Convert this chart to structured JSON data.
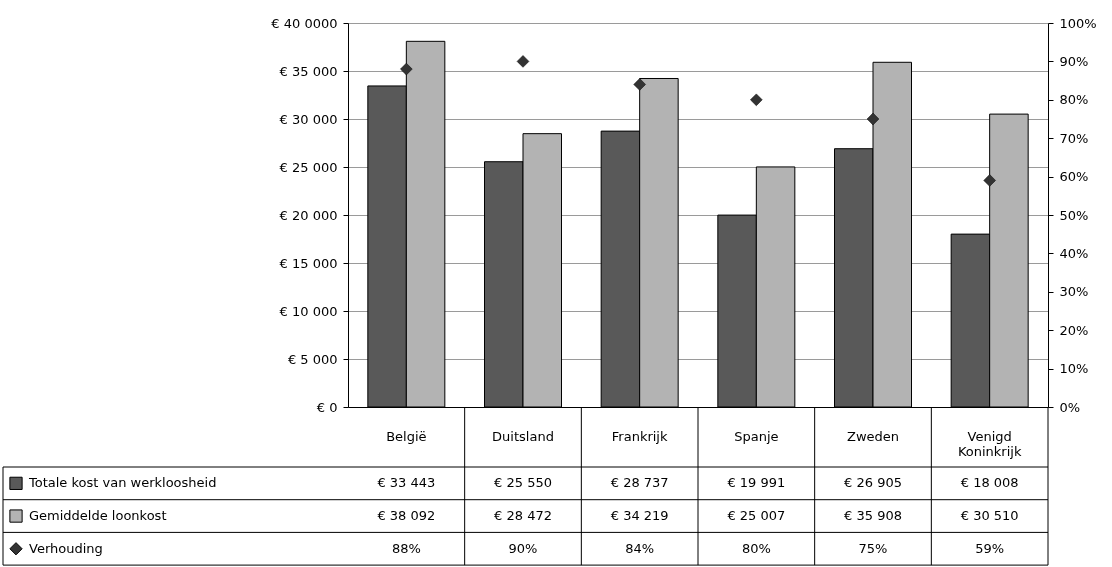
{
  "chart_data": {
    "type": "bar",
    "categories": [
      "België",
      "Duitsland",
      "Frankrijk",
      "Spanje",
      "Zweden",
      "Venigd Koninkrijk"
    ],
    "series": [
      {
        "name": "Totale kost van werkloosheid",
        "color": "#595959",
        "values": [
          33443,
          25550,
          28737,
          19991,
          26905,
          18008
        ],
        "value_labels": [
          "€ 33 443",
          "€ 25 550",
          "€ 28 737",
          "€ 19 991",
          "€ 26 905",
          "€ 18 008"
        ]
      },
      {
        "name": "Gemiddelde loonkost",
        "color": "#b3b3b3",
        "values": [
          38092,
          28472,
          34219,
          25007,
          35908,
          30510
        ],
        "value_labels": [
          "€ 38 092",
          "€ 28 472",
          "€ 34 219",
          "€ 25 007",
          "€ 35 908",
          "€ 30 510"
        ]
      },
      {
        "name": "Verhouding",
        "type": "scatter",
        "axis": "y2",
        "marker": "diamond",
        "color": "#333333",
        "values": [
          88,
          90,
          84,
          80,
          75,
          59
        ],
        "value_labels": [
          "88%",
          "90%",
          "84%",
          "80%",
          "75%",
          "59%"
        ]
      }
    ],
    "ylim": [
      0,
      40000
    ],
    "yticks": [
      {
        "value": 0,
        "label": "€ 0"
      },
      {
        "value": 5000,
        "label": "€ 5 000"
      },
      {
        "value": 10000,
        "label": "€ 10 000"
      },
      {
        "value": 15000,
        "label": "€ 15 000"
      },
      {
        "value": 20000,
        "label": "€ 20 000"
      },
      {
        "value": 25000,
        "label": "€ 25 000"
      },
      {
        "value": 30000,
        "label": "€ 30 000"
      },
      {
        "value": 35000,
        "label": "€ 35 000"
      },
      {
        "value": 40000,
        "label": "€ 40 0000"
      }
    ],
    "y2lim": [
      0,
      100
    ],
    "y2ticks": [
      {
        "value": 0,
        "label": "0%"
      },
      {
        "value": 10,
        "label": "10%"
      },
      {
        "value": 20,
        "label": "20%"
      },
      {
        "value": 30,
        "label": "30%"
      },
      {
        "value": 40,
        "label": "40%"
      },
      {
        "value": 50,
        "label": "50%"
      },
      {
        "value": 60,
        "label": "60%"
      },
      {
        "value": 70,
        "label": "70%"
      },
      {
        "value": 80,
        "label": "80%"
      },
      {
        "value": 90,
        "label": "90%"
      },
      {
        "value": 100,
        "label": "100%"
      }
    ],
    "grid": "y",
    "legend": "bottom"
  }
}
